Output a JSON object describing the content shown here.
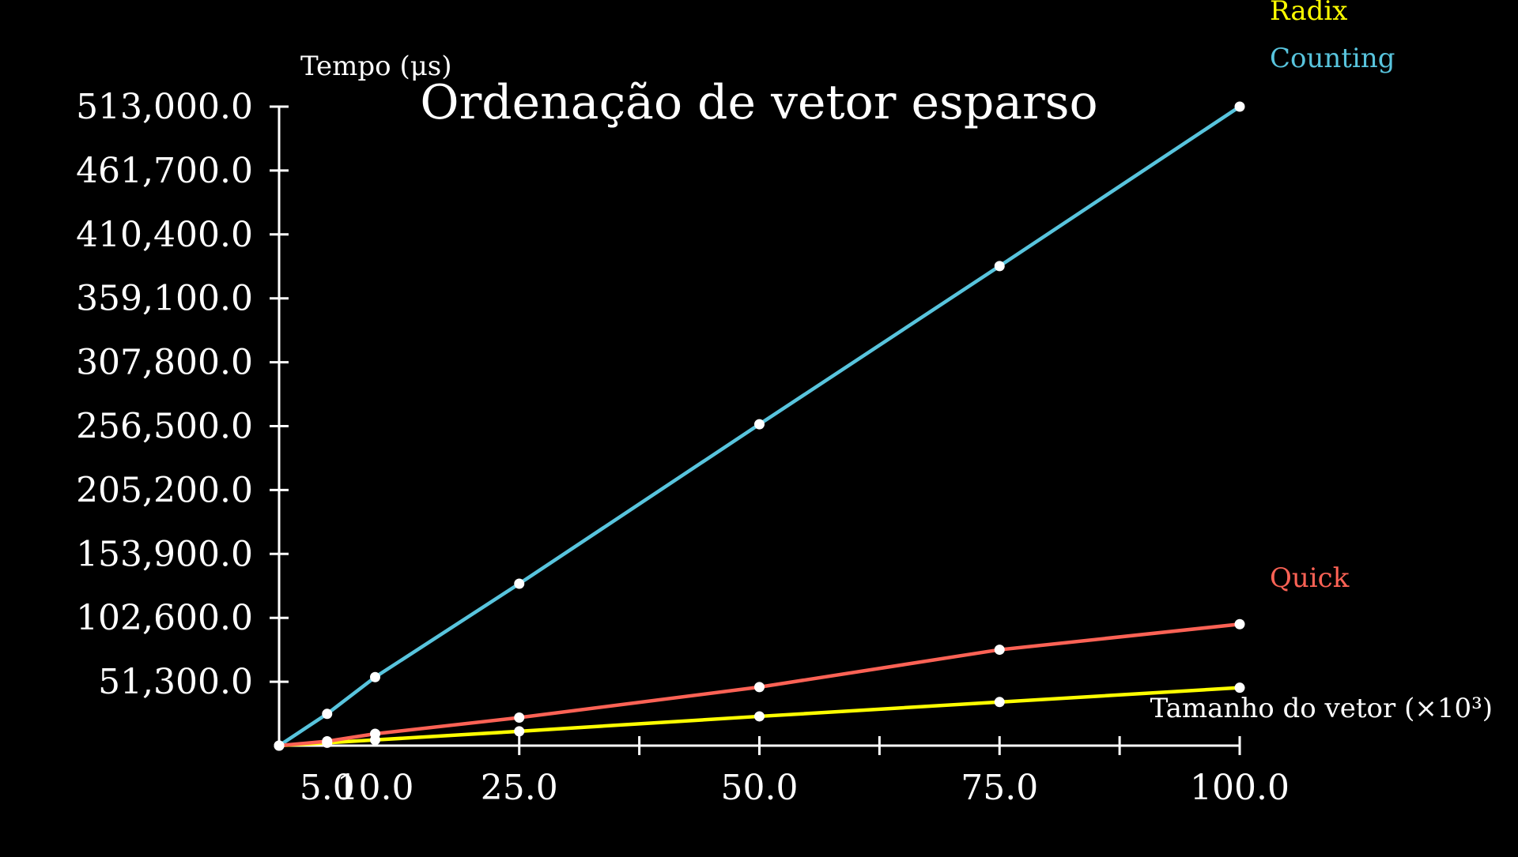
{
  "chart_data": {
    "type": "line",
    "title": "Ordenação de vetor esparso",
    "ylabel": "Tempo (μs)",
    "xlabel": "Tamanho do vetor (×10³)",
    "x": [
      0,
      5,
      10,
      25,
      50,
      75,
      100
    ],
    "xlim": [
      0,
      100
    ],
    "ylim": [
      0,
      513000
    ],
    "x_ticks": [
      25,
      50,
      75,
      100
    ],
    "x_tick_labels": [
      "5.0",
      "10.0",
      "25.0",
      "50.0",
      "75.0",
      "100.0"
    ],
    "x_tick_label_values": [
      5,
      10,
      25,
      50,
      75,
      100
    ],
    "y_ticks": [
      51300,
      102600,
      153900,
      205200,
      256500,
      307800,
      359100,
      410400,
      461700,
      513000
    ],
    "y_tick_labels": [
      "51,300.0",
      "102,600.0",
      "153,900.0",
      "205,200.0",
      "256,500.0",
      "307,800.0",
      "359,100.0",
      "410,400.0",
      "461,700.0",
      "513,000.0"
    ],
    "grid": false,
    "series": [
      {
        "name": "Radix",
        "color": "#ffff00",
        "values": [
          0,
          2300,
          4600,
          11500,
          23500,
          35000,
          46500
        ]
      },
      {
        "name": "Counting",
        "color": "#58c4dd",
        "values": [
          0,
          25500,
          55000,
          130000,
          258000,
          385000,
          513000
        ]
      },
      {
        "name": "Quick",
        "color": "#fc6255",
        "values": [
          0,
          3500,
          9500,
          22500,
          47000,
          77000,
          97500
        ]
      }
    ],
    "point_color": "#ffffff",
    "axis_color": "#ffffff"
  }
}
